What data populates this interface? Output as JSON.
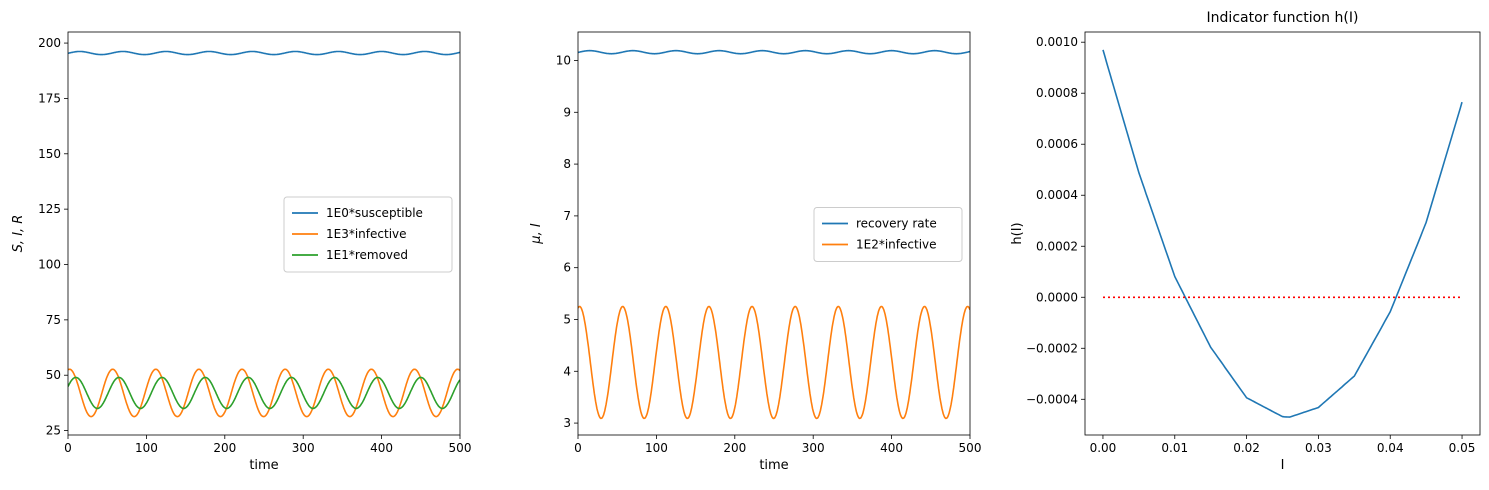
{
  "chart_data": [
    {
      "type": "line",
      "title": "",
      "xlabel": "time",
      "ylabel": "S, I, R",
      "xlim": [
        0,
        500
      ],
      "ylim": [
        23,
        205
      ],
      "xticks": [
        0,
        100,
        200,
        300,
        400,
        500
      ],
      "yticks": [
        25,
        50,
        75,
        100,
        125,
        150,
        175,
        200
      ],
      "legend": "center-right",
      "grid": false,
      "series": [
        {
          "name": "1E0*susceptible",
          "color": "#1f77b4",
          "mean": 195.5,
          "amplitude": 0.7,
          "period": 55,
          "phase_x": 15
        },
        {
          "name": "1E3*infective",
          "color": "#ff7f0e",
          "mean": 42,
          "amplitude": 10.7,
          "period": 55,
          "phase_x": 2
        },
        {
          "name": "1E1*removed",
          "color": "#2ca02c",
          "mean": 42,
          "amplitude": 7,
          "period": 55,
          "phase_x": 10
        }
      ]
    },
    {
      "type": "line",
      "title": "",
      "xlabel": "time",
      "ylabel": "μ, I",
      "xlim": [
        0,
        500
      ],
      "ylim": [
        2.77,
        10.55
      ],
      "xticks": [
        0,
        100,
        200,
        300,
        400,
        500
      ],
      "yticks": [
        3,
        4,
        5,
        6,
        7,
        8,
        9,
        10
      ],
      "legend": "center-right",
      "grid": false,
      "series": [
        {
          "name": "recovery rate",
          "color": "#1f77b4",
          "mean": 10.16,
          "amplitude": 0.03,
          "period": 55,
          "phase_x": 15
        },
        {
          "name": "1E2*infective",
          "color": "#ff7f0e",
          "mean": 4.17,
          "amplitude": 1.08,
          "period": 55,
          "phase_x": 2
        }
      ]
    },
    {
      "type": "line",
      "title": "Indicator function h(I)",
      "xlabel": "I",
      "ylabel": "h(I)",
      "xlim": [
        -0.0025,
        0.0525
      ],
      "ylim": [
        -0.00054,
        0.00104
      ],
      "xticks": [
        0.0,
        0.01,
        0.02,
        0.03,
        0.04,
        0.05
      ],
      "xtick_labels": [
        "0.00",
        "0.01",
        "0.02",
        "0.03",
        "0.04",
        "0.05"
      ],
      "yticks": [
        -0.0004,
        -0.0002,
        0.0,
        0.0002,
        0.0004,
        0.0006,
        0.0008,
        0.001
      ],
      "ytick_labels": [
        "−0.0004",
        "−0.0002",
        "0.0000",
        "0.0002",
        "0.0004",
        "0.0006",
        "0.0008",
        "0.0010"
      ],
      "grid": false,
      "series": [
        {
          "name": "",
          "color": "#1f77b4",
          "x": [
            0.0,
            0.005,
            0.01,
            0.015,
            0.02,
            0.025,
            0.026,
            0.03,
            0.035,
            0.04,
            0.045,
            0.05
          ],
          "y": [
            0.00097,
            0.000488,
            8.1e-05,
            -0.000196,
            -0.000394,
            -0.000468,
            -0.00047,
            -0.000432,
            -0.000309,
            -5.7e-05,
            0.000293,
            0.000765
          ]
        },
        {
          "name": "",
          "color": "#ff0000",
          "style": "dotted",
          "x": [
            0.0,
            0.05
          ],
          "y": [
            0.0,
            0.0
          ]
        }
      ]
    }
  ]
}
